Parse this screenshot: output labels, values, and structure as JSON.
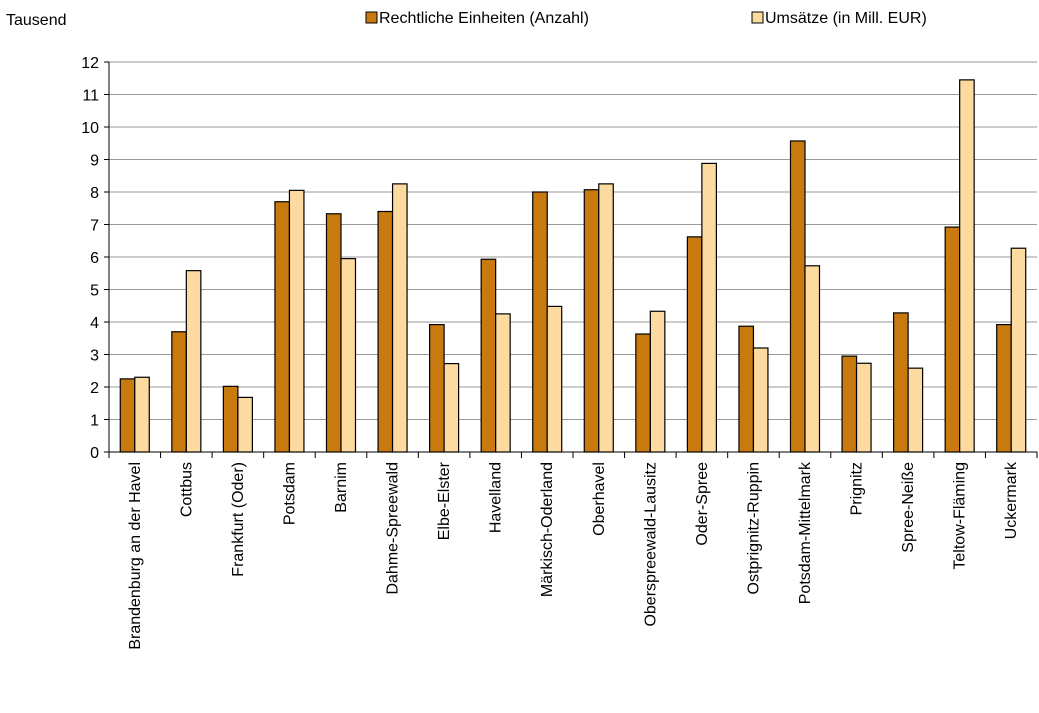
{
  "chart_data": {
    "type": "bar",
    "unit_label": "Tausend",
    "categories": [
      "Brandenburg an der Havel",
      "Cottbus",
      "Frankfurt (Oder)",
      "Potsdam",
      "Barnim",
      "Dahme-Spreewald",
      "Elbe-Elster",
      "Havelland",
      "Märkisch-Oderland",
      "Oberhavel",
      "Oberspreewald-Lausitz",
      "Oder-Spree",
      "Ostprignitz-Ruppin",
      "Potsdam-Mittelmark",
      "Prignitz",
      "Spree-Neiße",
      "Teltow-Fläming",
      "Uckermark"
    ],
    "series": [
      {
        "name": "Rechtliche Einheiten (Anzahl)",
        "color": "#C87A0E",
        "values": [
          2.25,
          3.7,
          2.02,
          7.7,
          7.33,
          7.4,
          3.92,
          5.93,
          8.0,
          8.07,
          3.63,
          6.62,
          3.87,
          9.57,
          2.95,
          4.28,
          6.92,
          3.92
        ]
      },
      {
        "name": "Umsätze (in Mill. EUR)",
        "color": "#FDDBA0",
        "values": [
          2.3,
          5.58,
          1.68,
          8.05,
          5.95,
          8.25,
          2.72,
          4.25,
          4.48,
          8.25,
          4.33,
          8.88,
          3.2,
          5.73,
          2.73,
          2.58,
          11.45,
          6.27
        ]
      }
    ],
    "ylim": [
      0,
      12
    ],
    "yticks": [
      0,
      1,
      2,
      3,
      4,
      5,
      6,
      7,
      8,
      9,
      10,
      11,
      12
    ],
    "grid": true,
    "legend_position": "top"
  }
}
